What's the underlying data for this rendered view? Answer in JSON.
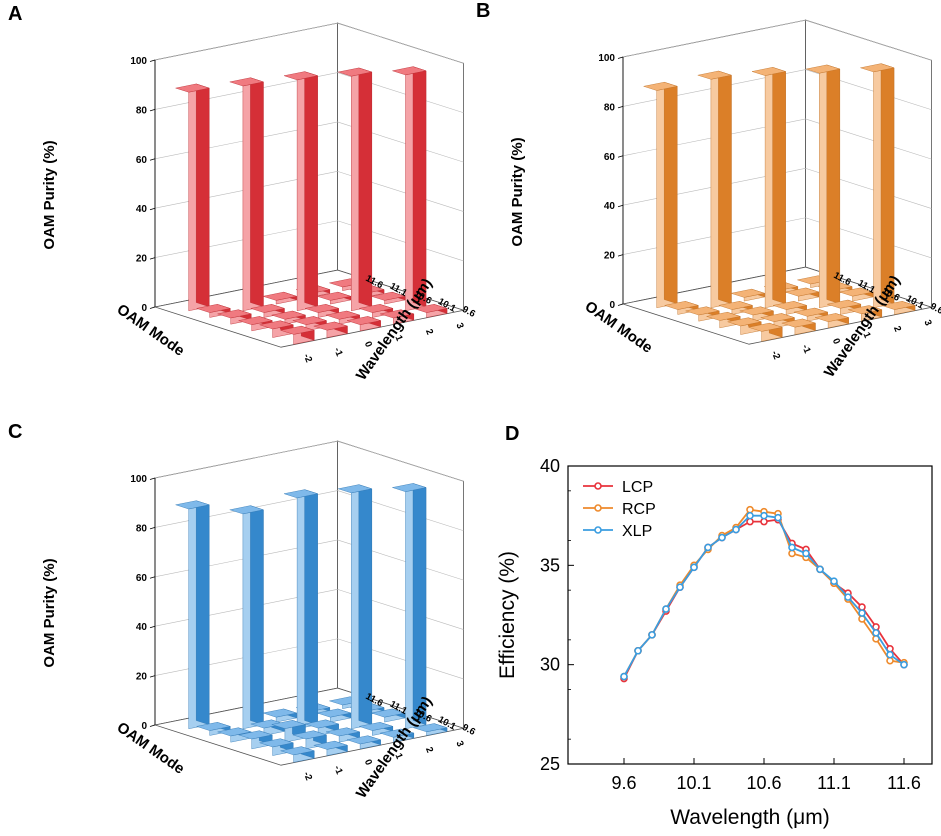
{
  "chart_data": [
    {
      "panel": "A",
      "type": "bar3d",
      "color": "#e8333c",
      "zlabel": "OAM Purity (%)",
      "xlabel": "OAM Mode",
      "ylabel": "Wavelength (μm)",
      "zticks": [
        "0",
        "20",
        "40",
        "60",
        "80",
        "100"
      ],
      "zlim": [
        0,
        100
      ],
      "modes": [
        "-2",
        "-1",
        "0",
        "1",
        "2",
        "3"
      ],
      "wavelengths": [
        "9.6",
        "10.1",
        "10.6",
        "11.1",
        "11.6"
      ],
      "main_bars": [
        88.5,
        91,
        93.5,
        95,
        95.5
      ],
      "small_bars": [
        [
          2.0,
          1.5,
          1.5,
          1.5,
          1.5
        ],
        [
          2.5,
          2.0,
          1.5,
          1.5,
          1.5
        ],
        [
          2.5,
          2.0,
          2.0,
          2.0,
          1.5
        ],
        [
          3.5,
          2.5,
          2.0,
          2.0,
          1.5
        ],
        [
          4.0,
          3.0,
          2.5,
          2.5,
          2.0
        ]
      ]
    },
    {
      "panel": "B",
      "type": "bar3d",
      "color": "#ee8a2c",
      "zlabel": "OAM Purity (%)",
      "xlabel": "OAM Mode",
      "ylabel": "Wavelength (μm)",
      "zticks": [
        "0",
        "20",
        "40",
        "60",
        "80",
        "100"
      ],
      "zlim": [
        0,
        100
      ],
      "modes": [
        "-2",
        "-1",
        "0",
        "1",
        "2",
        "3"
      ],
      "wavelengths": [
        "9.6",
        "10.1",
        "10.6",
        "11.1",
        "11.6"
      ],
      "main_bars": [
        88,
        92.5,
        94,
        95,
        95.5
      ],
      "small_bars": [
        [
          2.0,
          1.5,
          1.5,
          1.5,
          1.5
        ],
        [
          2.5,
          2.0,
          1.5,
          2.0,
          1.5
        ],
        [
          3.0,
          2.5,
          2.0,
          2.5,
          2.0
        ],
        [
          3.5,
          2.5,
          2.0,
          2.5,
          2.0
        ],
        [
          4.0,
          3.0,
          2.5,
          3.0,
          2.0
        ]
      ]
    },
    {
      "panel": "C",
      "type": "bar3d",
      "color": "#3a94de",
      "zlabel": "OAM Purity (%)",
      "xlabel": "OAM Mode",
      "ylabel": "Wavelength (μm)",
      "zticks": [
        "0",
        "20",
        "40",
        "60",
        "80",
        "100"
      ],
      "zlim": [
        0,
        100
      ],
      "modes": [
        "-2",
        "-1",
        "0",
        "1",
        "2",
        "3"
      ],
      "wavelengths": [
        "9.6",
        "10.1",
        "10.6",
        "11.1",
        "11.6"
      ],
      "main_bars": [
        89,
        87,
        93.5,
        95.5,
        96
      ],
      "small_bars": [
        [
          2.0,
          1.5,
          2.0,
          1.5,
          1.5
        ],
        [
          2.5,
          3.0,
          2.5,
          2.0,
          1.5
        ],
        [
          4.0,
          5.5,
          3.0,
          2.5,
          2.0
        ],
        [
          3.5,
          4.0,
          2.5,
          2.0,
          1.5
        ],
        [
          3.0,
          2.5,
          2.0,
          2.0,
          1.5
        ]
      ]
    },
    {
      "panel": "D",
      "type": "line",
      "xlabel": "Wavelength (μm)",
      "ylabel": "Efficiency (%)",
      "xlim": [
        9.2,
        11.8
      ],
      "ylim": [
        25,
        40
      ],
      "xticks": [
        "9.6",
        "10.1",
        "10.6",
        "11.1",
        "11.6"
      ],
      "yticks": [
        "25",
        "30",
        "35",
        "40"
      ],
      "x": [
        9.6,
        9.7,
        9.8,
        9.9,
        10.0,
        10.1,
        10.2,
        10.3,
        10.4,
        10.5,
        10.6,
        10.7,
        10.8,
        10.9,
        11.0,
        11.1,
        11.2,
        11.3,
        11.4,
        11.5,
        11.6
      ],
      "series": [
        {
          "name": "LCP",
          "color": "#e8333c",
          "values": [
            29.3,
            30.7,
            31.5,
            32.7,
            33.9,
            34.9,
            35.9,
            36.4,
            36.8,
            37.2,
            37.2,
            37.3,
            36.1,
            35.8,
            34.8,
            34.1,
            33.6,
            32.9,
            31.9,
            30.8,
            30.0
          ]
        },
        {
          "name": "RCP",
          "color": "#ee8a2c",
          "values": [
            29.4,
            30.7,
            31.5,
            32.8,
            34.0,
            35.0,
            35.8,
            36.5,
            36.9,
            37.8,
            37.7,
            37.6,
            35.6,
            35.4,
            34.8,
            34.1,
            33.3,
            32.3,
            31.3,
            30.2,
            30.1
          ]
        },
        {
          "name": "XLP",
          "color": "#3a9de0",
          "values": [
            29.4,
            30.7,
            31.5,
            32.8,
            33.9,
            34.9,
            35.9,
            36.4,
            36.8,
            37.5,
            37.5,
            37.4,
            35.9,
            35.6,
            34.8,
            34.2,
            33.4,
            32.6,
            31.6,
            30.5,
            30.0
          ]
        }
      ]
    }
  ]
}
